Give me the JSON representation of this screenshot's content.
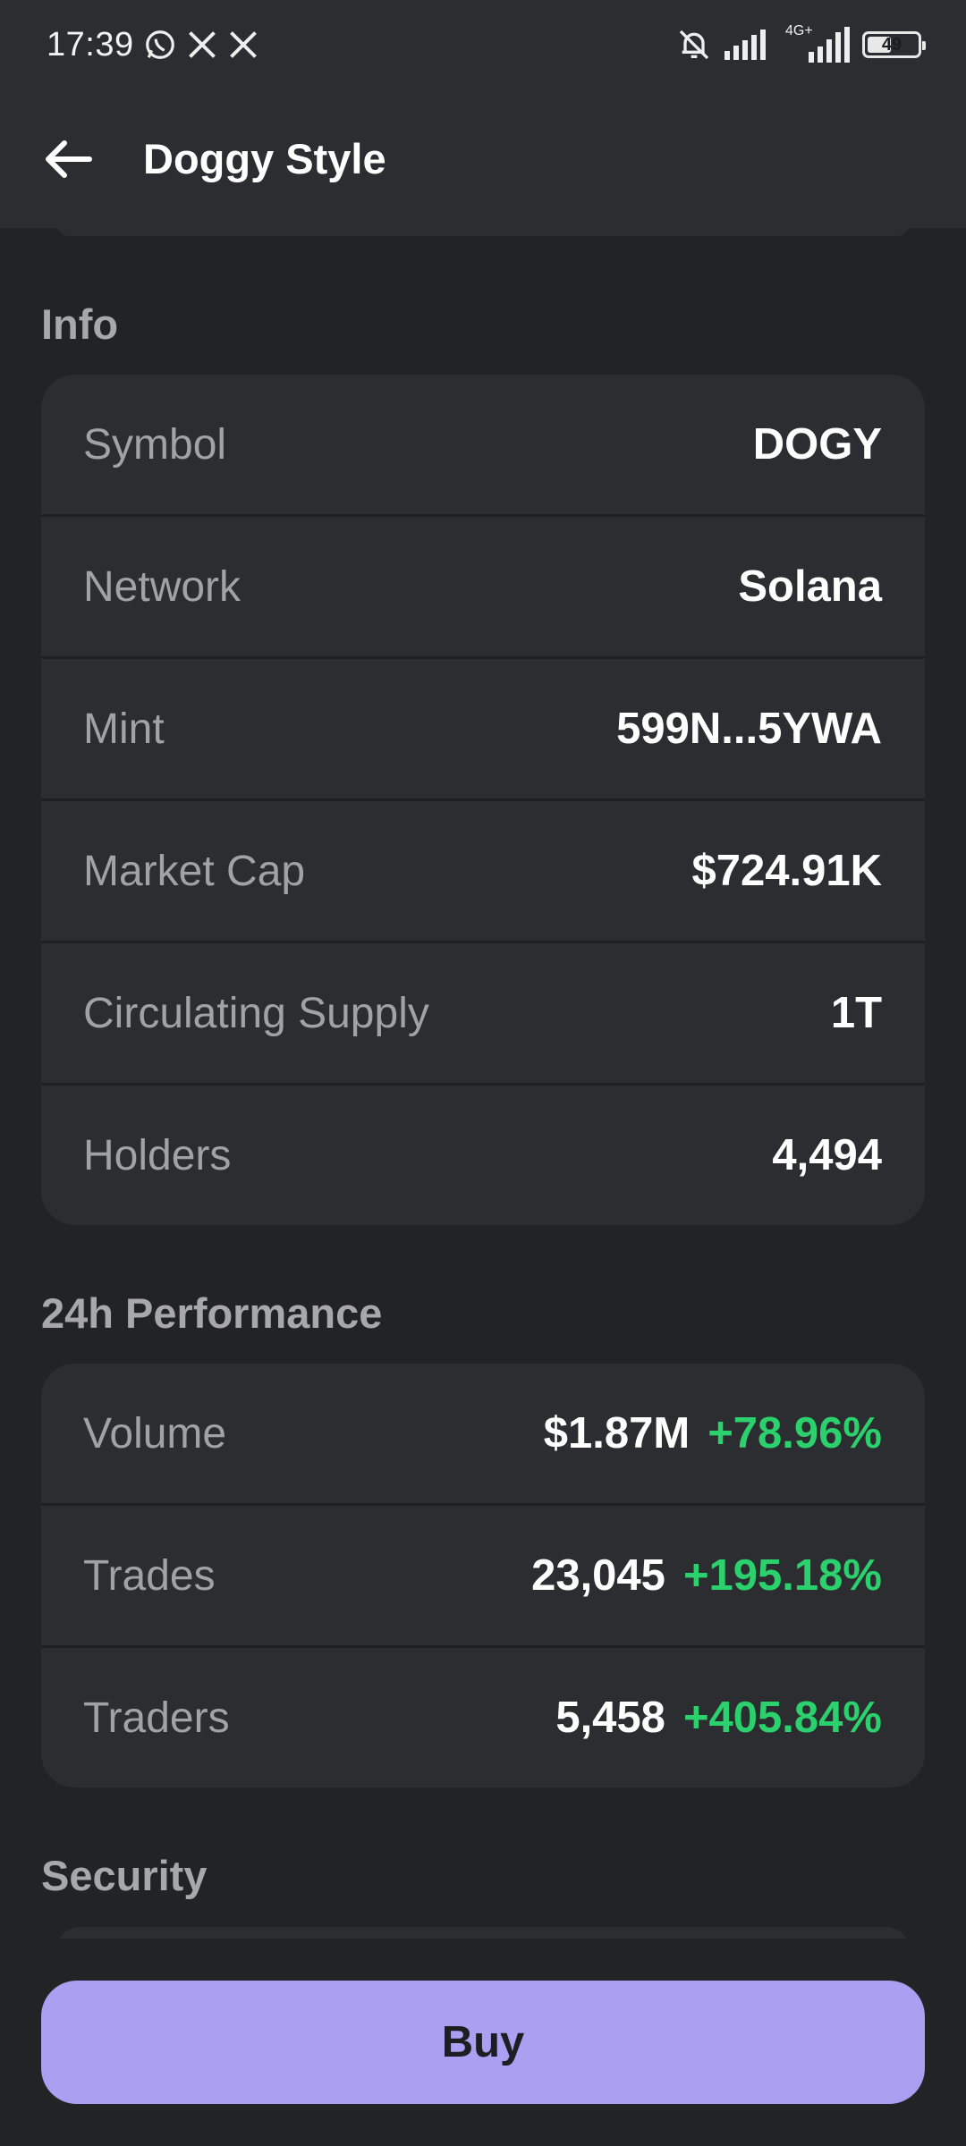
{
  "status_bar": {
    "time": "17:39",
    "battery": "49",
    "icons": [
      "whatsapp-icon",
      "x-icon",
      "x-icon",
      "bell-muted-icon",
      "signal-icon",
      "signal-4g-icon",
      "battery-icon"
    ],
    "network_label": "4G+"
  },
  "header": {
    "title": "Doggy Style",
    "back_icon": "arrow-left-icon"
  },
  "info": {
    "title": "Info",
    "rows": [
      {
        "label": "Symbol",
        "value": "DOGY"
      },
      {
        "label": "Network",
        "value": "Solana"
      },
      {
        "label": "Mint",
        "value": "599N...5YWA"
      },
      {
        "label": "Market Cap",
        "value": "$724.91K"
      },
      {
        "label": "Circulating Supply",
        "value": "1T"
      },
      {
        "label": "Holders",
        "value": "4,494"
      }
    ]
  },
  "performance": {
    "title": "24h Performance",
    "rows": [
      {
        "label": "Volume",
        "value": "$1.87M",
        "change": "+78.96%"
      },
      {
        "label": "Trades",
        "value": "23,045",
        "change": "+195.18%"
      },
      {
        "label": "Traders",
        "value": "5,458",
        "change": "+405.84%"
      }
    ]
  },
  "security": {
    "title": "Security"
  },
  "actions": {
    "buy_label": "Buy"
  },
  "colors": {
    "background": "#222325",
    "card": "#2c2d31",
    "positive": "#2bd16c",
    "accent": "#ab9ff2"
  }
}
